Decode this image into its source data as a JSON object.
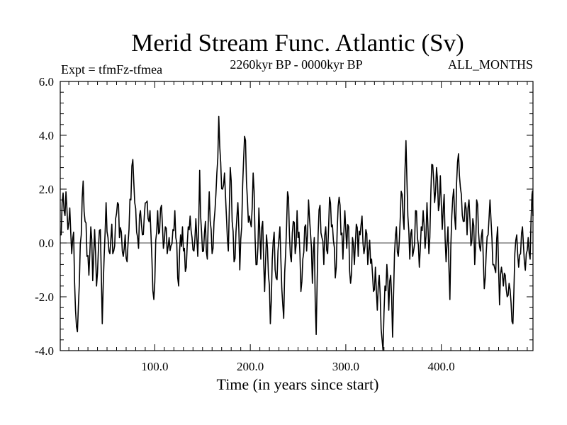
{
  "chart_data": {
    "type": "line",
    "title": "Merid Stream Func. Atlantic (Sv)",
    "subtitle": "2260kyr BP - 0000kyr BP",
    "experiment_label": "Expt = tfmFz-tfmea",
    "months_label": "ALL_MONTHS",
    "xlabel": "Time (in years since start)",
    "ylabel": "",
    "xlim": [
      1,
      496
    ],
    "ylim": [
      -4.0,
      6.0
    ],
    "x_ticks": [
      100,
      200,
      300,
      400
    ],
    "x_tick_labels": [
      "100.0",
      "200.0",
      "300.0",
      "400.0"
    ],
    "y_ticks": [
      -4,
      -2,
      0,
      2,
      4,
      6
    ],
    "y_tick_labels": [
      "-4.0",
      "-2.0",
      "0.0",
      "2.0",
      "4.0",
      "6.0"
    ],
    "zero_line": true,
    "series": [
      {
        "name": "Merid Stream Func. Atlantic",
        "anchors": [
          [
            1,
            0.3
          ],
          [
            3,
            1.5
          ],
          [
            5,
            1.2
          ],
          [
            7,
            1.9
          ],
          [
            9,
            0.5
          ],
          [
            11,
            1.3
          ],
          [
            13,
            -0.4
          ],
          [
            15,
            0.4
          ],
          [
            17,
            -2.5
          ],
          [
            19,
            -3.3
          ],
          [
            21,
            -1.5
          ],
          [
            23,
            0.3
          ],
          [
            25,
            2.3
          ],
          [
            27,
            0.8
          ],
          [
            29,
            -0.5
          ],
          [
            31,
            -1.2
          ],
          [
            33,
            0.6
          ],
          [
            35,
            -1.4
          ],
          [
            37,
            0.5
          ],
          [
            39,
            -1.6
          ],
          [
            41,
            -0.2
          ],
          [
            43,
            0.5
          ],
          [
            45,
            -3.0
          ],
          [
            47,
            -0.5
          ],
          [
            49,
            1.5
          ],
          [
            51,
            0.2
          ],
          [
            53,
            -0.4
          ],
          [
            55,
            0.7
          ],
          [
            57,
            -0.3
          ],
          [
            59,
            0.9
          ],
          [
            61,
            1.5
          ],
          [
            63,
            0.2
          ],
          [
            65,
            0.4
          ],
          [
            67,
            -0.5
          ],
          [
            69,
            0.3
          ],
          [
            71,
            -0.7
          ],
          [
            73,
            0.5
          ],
          [
            75,
            1.6
          ],
          [
            77,
            3.1
          ],
          [
            79,
            1.5
          ],
          [
            81,
            0.4
          ],
          [
            83,
            -0.2
          ],
          [
            85,
            1.2
          ],
          [
            87,
            0.3
          ],
          [
            89,
            1.0
          ],
          [
            91,
            1.5
          ],
          [
            93,
            0.9
          ],
          [
            95,
            1.2
          ],
          [
            97,
            -0.6
          ],
          [
            99,
            -2.1
          ],
          [
            101,
            0.1
          ],
          [
            103,
            1.2
          ],
          [
            105,
            0.4
          ],
          [
            107,
            1.4
          ],
          [
            109,
            -0.2
          ],
          [
            111,
            0.6
          ],
          [
            113,
            -0.4
          ],
          [
            115,
            0.2
          ],
          [
            117,
            -0.1
          ],
          [
            119,
            0.5
          ],
          [
            121,
            1.2
          ],
          [
            123,
            0.0
          ],
          [
            125,
            -1.6
          ],
          [
            127,
            0.3
          ],
          [
            129,
            0.6
          ],
          [
            131,
            -0.2
          ],
          [
            133,
            -0.9
          ],
          [
            135,
            0.6
          ],
          [
            137,
            1.0
          ],
          [
            139,
            0.2
          ],
          [
            141,
            -0.3
          ],
          [
            143,
            0.9
          ],
          [
            145,
            -0.5
          ],
          [
            147,
            2.7
          ],
          [
            149,
            0.4
          ],
          [
            151,
            -0.3
          ],
          [
            153,
            0.8
          ],
          [
            155,
            -0.6
          ],
          [
            157,
            1.9
          ],
          [
            159,
            0.5
          ],
          [
            161,
            -0.2
          ],
          [
            163,
            1.2
          ],
          [
            165,
            2.6
          ],
          [
            167,
            4.7
          ],
          [
            169,
            3.0
          ],
          [
            171,
            2.0
          ],
          [
            173,
            2.6
          ],
          [
            175,
            1.0
          ],
          [
            177,
            -0.3
          ],
          [
            179,
            2.8
          ],
          [
            181,
            0.8
          ],
          [
            183,
            -0.7
          ],
          [
            185,
            0.4
          ],
          [
            187,
            1.5
          ],
          [
            189,
            -1.0
          ],
          [
            191,
            0.6
          ],
          [
            193,
            3.1
          ],
          [
            195,
            3.8
          ],
          [
            197,
            1.6
          ],
          [
            199,
            1.0
          ],
          [
            201,
            0.6
          ],
          [
            203,
            2.6
          ],
          [
            205,
            0.2
          ],
          [
            207,
            -0.8
          ],
          [
            209,
            1.3
          ],
          [
            211,
            -0.6
          ],
          [
            213,
            0.8
          ],
          [
            215,
            -1.8
          ],
          [
            217,
            0.3
          ],
          [
            219,
            -1.2
          ],
          [
            221,
            -3.0
          ],
          [
            223,
            -0.6
          ],
          [
            225,
            0.4
          ],
          [
            227,
            -1.3
          ],
          [
            229,
            -0.3
          ],
          [
            231,
            0.6
          ],
          [
            233,
            -1.7
          ],
          [
            235,
            -2.8
          ],
          [
            237,
            -0.4
          ],
          [
            239,
            1.9
          ],
          [
            241,
            0.3
          ],
          [
            243,
            -0.7
          ],
          [
            245,
            0.8
          ],
          [
            247,
            -0.4
          ],
          [
            249,
            1.2
          ],
          [
            251,
            0.4
          ],
          [
            253,
            -1.8
          ],
          [
            255,
            -0.6
          ],
          [
            257,
            0.6
          ],
          [
            259,
            -0.3
          ],
          [
            261,
            1.6
          ],
          [
            263,
            0.4
          ],
          [
            265,
            -1.5
          ],
          [
            267,
            0.2
          ],
          [
            269,
            -3.4
          ],
          [
            271,
            0.3
          ],
          [
            273,
            1.4
          ],
          [
            275,
            0.2
          ],
          [
            277,
            -0.8
          ],
          [
            279,
            0.6
          ],
          [
            281,
            -0.4
          ],
          [
            283,
            1.7
          ],
          [
            285,
            0.6
          ],
          [
            287,
            0.1
          ],
          [
            289,
            -1.3
          ],
          [
            291,
            0.5
          ],
          [
            293,
            1.7
          ],
          [
            295,
            0.3
          ],
          [
            297,
            -0.6
          ],
          [
            299,
            1.2
          ],
          [
            301,
            -0.2
          ],
          [
            303,
            0.6
          ],
          [
            305,
            -1.5
          ],
          [
            307,
            0.2
          ],
          [
            309,
            -0.8
          ],
          [
            311,
            0.7
          ],
          [
            313,
            -0.5
          ],
          [
            315,
            0.3
          ],
          [
            317,
            1.0
          ],
          [
            319,
            -0.4
          ],
          [
            321,
            0.5
          ],
          [
            323,
            -0.8
          ],
          [
            325,
            0.1
          ],
          [
            327,
            -0.6
          ],
          [
            329,
            -1.8
          ],
          [
            331,
            -0.9
          ],
          [
            333,
            -2.5
          ],
          [
            335,
            -1.2
          ],
          [
            337,
            -3.2
          ],
          [
            339,
            -4.0
          ],
          [
            341,
            -1.6
          ],
          [
            343,
            -0.8
          ],
          [
            345,
            -2.5
          ],
          [
            347,
            -1.2
          ],
          [
            349,
            -3.5
          ],
          [
            351,
            -0.4
          ],
          [
            353,
            0.6
          ],
          [
            355,
            -0.5
          ],
          [
            357,
            0.9
          ],
          [
            359,
            1.8
          ],
          [
            361,
            0.5
          ],
          [
            363,
            3.8
          ],
          [
            365,
            1.0
          ],
          [
            367,
            -0.6
          ],
          [
            369,
            0.5
          ],
          [
            371,
            -0.3
          ],
          [
            373,
            1.2
          ],
          [
            375,
            0.2
          ],
          [
            377,
            -0.9
          ],
          [
            379,
            0.6
          ],
          [
            381,
            1.2
          ],
          [
            383,
            -0.2
          ],
          [
            385,
            1.5
          ],
          [
            387,
            -0.4
          ],
          [
            389,
            1.8
          ],
          [
            391,
            2.9
          ],
          [
            393,
            1.5
          ],
          [
            395,
            2.8
          ],
          [
            397,
            1.2
          ],
          [
            399,
            2.5
          ],
          [
            401,
            0.5
          ],
          [
            403,
            1.8
          ],
          [
            405,
            -0.7
          ],
          [
            407,
            0.6
          ],
          [
            409,
            -2.1
          ],
          [
            411,
            1.0
          ],
          [
            413,
            2.0
          ],
          [
            415,
            0.5
          ],
          [
            417,
            3.0
          ],
          [
            419,
            2.5
          ],
          [
            421,
            1.8
          ],
          [
            423,
            0.8
          ],
          [
            425,
            1.5
          ],
          [
            427,
            0.3
          ],
          [
            429,
            1.6
          ],
          [
            431,
            -0.1
          ],
          [
            433,
            0.9
          ],
          [
            435,
            -0.8
          ],
          [
            437,
            1.6
          ],
          [
            439,
            0.4
          ],
          [
            441,
            -0.3
          ],
          [
            443,
            0.5
          ],
          [
            445,
            -1.7
          ],
          [
            447,
            -0.4
          ],
          [
            449,
            0.3
          ],
          [
            451,
            1.6
          ],
          [
            453,
            0.2
          ],
          [
            455,
            -0.8
          ],
          [
            457,
            -1.1
          ],
          [
            459,
            0.6
          ],
          [
            461,
            -2.3
          ],
          [
            463,
            -0.9
          ],
          [
            465,
            -1.6
          ],
          [
            467,
            -1.2
          ],
          [
            469,
            -2.0
          ],
          [
            471,
            -1.5
          ],
          [
            473,
            -2.2
          ],
          [
            475,
            -3.0
          ],
          [
            477,
            -0.4
          ],
          [
            479,
            0.3
          ],
          [
            481,
            -0.9
          ],
          [
            483,
            -0.4
          ],
          [
            485,
            0.6
          ],
          [
            487,
            -0.7
          ],
          [
            489,
            -0.4
          ],
          [
            491,
            0.2
          ],
          [
            493,
            -0.6
          ],
          [
            495,
            1.8
          ],
          [
            496,
            1.0
          ]
        ]
      }
    ]
  }
}
